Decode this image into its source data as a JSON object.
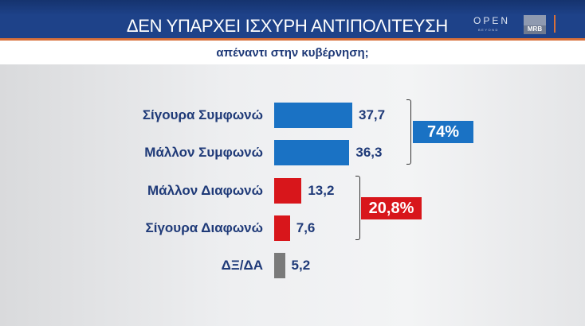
{
  "header": {
    "title": "ΔΕΝ ΥΠΑΡΧΕΙ ΙΣΧΥΡΗ ΑΝΤΙΠΟΛΙΤΕΥΣΗ",
    "logo_open": "OPEN",
    "logo_beyond": "BEYOND",
    "logo_mrb": "MRB"
  },
  "subtitle": "απέναντι στην κυβέρνηση;",
  "colors": {
    "agree": "#1a72c4",
    "disagree": "#d8161b",
    "neutral": "#7a7a7a",
    "text": "#1f3a78"
  },
  "chart_data": {
    "type": "bar",
    "orientation": "horizontal",
    "categories": [
      "Σίγουρα Συμφωνώ",
      "Μάλλον Συμφωνώ",
      "Μάλλον Διαφωνώ",
      "Σίγουρα Διαφωνώ",
      "ΔΞ/ΔΑ"
    ],
    "values": [
      37.7,
      36.3,
      13.2,
      7.6,
      5.2
    ],
    "value_labels": [
      "37,7",
      "36,3",
      "13,2",
      "7,6",
      "5,2"
    ],
    "bar_colors": [
      "#1a72c4",
      "#1a72c4",
      "#d8161b",
      "#d8161b",
      "#7a7a7a"
    ],
    "groups": [
      {
        "label": "74%",
        "color": "#1a72c4",
        "members": [
          0,
          1
        ]
      },
      {
        "label": "20,8%",
        "color": "#d8161b",
        "members": [
          2,
          3
        ]
      }
    ],
    "grid": false
  }
}
